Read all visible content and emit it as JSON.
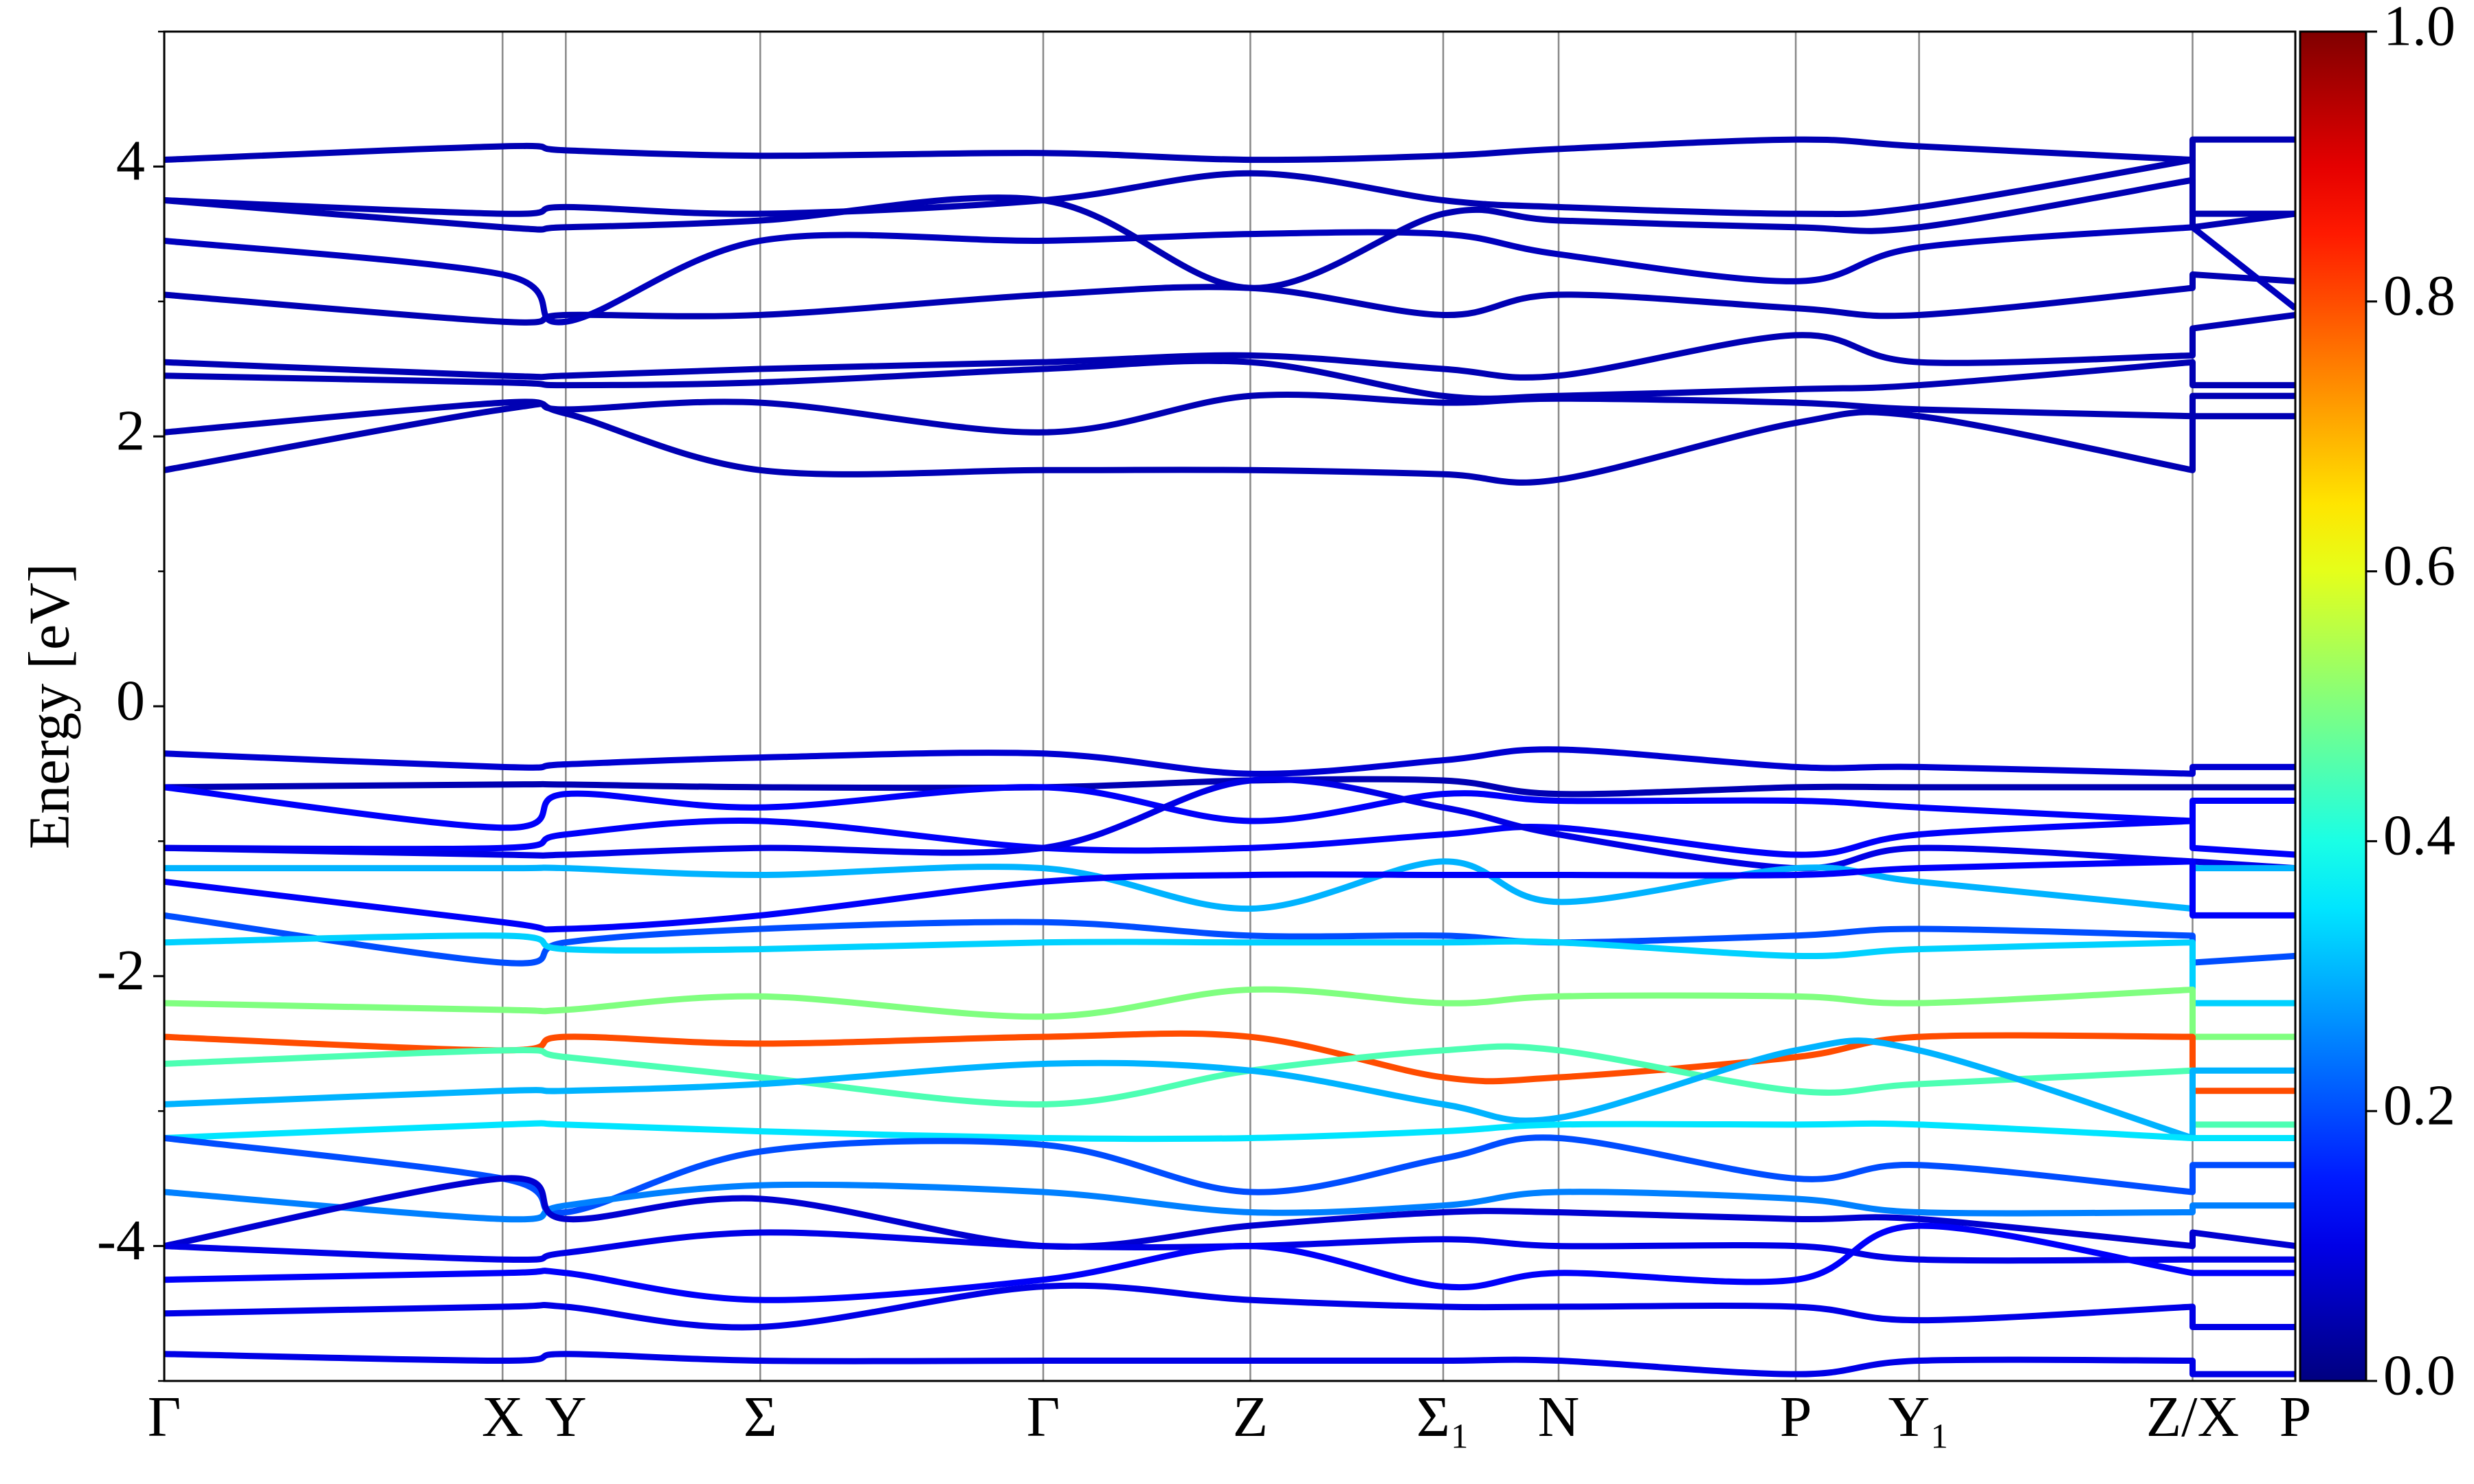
{
  "chart_data": {
    "type": "line",
    "ylabel": "Energy [eV]",
    "x": [
      0,
      0.214,
      0.254,
      0.377,
      0.556,
      0.687,
      0.809,
      0.882,
      1.032,
      1.11,
      1.283,
      1.283,
      1.348
    ],
    "xlim": [
      0,
      1.348
    ],
    "xticks": [
      {
        "value": 0,
        "label": "Γ"
      },
      {
        "value": 0.214,
        "label": "X"
      },
      {
        "value": 0.254,
        "label": "Y"
      },
      {
        "value": 0.377,
        "label": "Σ"
      },
      {
        "value": 0.556,
        "label": "Γ"
      },
      {
        "value": 0.687,
        "label": "Z"
      },
      {
        "value": 0.809,
        "label": "Σ₁"
      },
      {
        "value": 0.882,
        "label": "N"
      },
      {
        "value": 1.032,
        "label": "P"
      },
      {
        "value": 1.11,
        "label": "Y₁"
      },
      {
        "value": 1.283,
        "label": "Z/X"
      },
      {
        "value": 1.348,
        "label": "P"
      }
    ],
    "ylim": [
      -5,
      5
    ],
    "yticks": [
      -4,
      -2,
      0,
      2,
      4
    ],
    "yminorticks": [
      -5,
      -3,
      -1,
      1,
      3,
      5
    ],
    "colormap": "jet",
    "clim": [
      0,
      1
    ],
    "cticks": [
      {
        "value": 0,
        "label": "0.0"
      },
      0.2,
      0.4,
      0.6,
      0.8,
      {
        "value": 1,
        "label": "1.0"
      }
    ],
    "series": [
      {
        "weight": 0.05,
        "values": [
          1.75,
          2.2,
          2.17,
          1.75,
          1.75,
          1.75,
          1.72,
          1.68,
          2.1,
          2.15,
          1.75,
          2.15,
          2.15
        ]
      },
      {
        "weight": 0.05,
        "values": [
          2.03,
          2.25,
          2.2,
          2.25,
          2.03,
          2.3,
          2.25,
          2.28,
          2.25,
          2.2,
          2.15,
          2.3,
          2.3
        ]
      },
      {
        "weight": 0.05,
        "values": [
          2.45,
          2.4,
          2.38,
          2.4,
          2.5,
          2.55,
          2.3,
          2.3,
          2.35,
          2.38,
          2.55,
          2.38,
          2.38
        ]
      },
      {
        "weight": 0.05,
        "values": [
          2.55,
          2.45,
          2.45,
          2.5,
          2.55,
          2.6,
          2.5,
          2.45,
          2.75,
          2.55,
          2.6,
          2.8,
          2.9
        ]
      },
      {
        "weight": 0.05,
        "values": [
          3.05,
          2.85,
          2.9,
          2.9,
          3.05,
          3.1,
          2.9,
          3.05,
          2.95,
          2.9,
          3.1,
          3.2,
          3.15
        ]
      },
      {
        "weight": 0.06,
        "values": [
          3.45,
          3.2,
          2.85,
          3.45,
          3.45,
          3.5,
          3.5,
          3.35,
          3.15,
          3.4,
          3.55,
          3.55,
          2.95
        ]
      },
      {
        "weight": 0.05,
        "values": [
          3.75,
          3.55,
          3.55,
          3.6,
          3.75,
          3.1,
          3.65,
          3.6,
          3.55,
          3.55,
          3.9,
          3.55,
          3.65
        ]
      },
      {
        "weight": 0.05,
        "values": [
          3.75,
          3.65,
          3.7,
          3.65,
          3.75,
          3.95,
          3.75,
          3.7,
          3.65,
          3.7,
          4.05,
          3.65,
          3.65
        ]
      },
      {
        "weight": 0.05,
        "values": [
          4.05,
          4.15,
          4.12,
          4.08,
          4.1,
          4.05,
          4.08,
          4.13,
          4.2,
          4.15,
          4.05,
          4.2,
          4.2
        ]
      },
      {
        "weight": 0.08,
        "values": [
          -0.35,
          -0.45,
          -0.43,
          -0.38,
          -0.35,
          -0.5,
          -0.4,
          -0.32,
          -0.45,
          -0.45,
          -0.5,
          -0.45,
          -0.45
        ]
      },
      {
        "weight": 0.05,
        "values": [
          -0.6,
          -0.58,
          -0.58,
          -0.6,
          -0.6,
          -0.55,
          -0.55,
          -0.65,
          -0.6,
          -0.6,
          -0.6,
          -0.6,
          -0.6
        ]
      },
      {
        "weight": 0.12,
        "values": [
          -0.6,
          -0.9,
          -0.65,
          -0.75,
          -0.6,
          -0.85,
          -0.65,
          -0.7,
          -0.7,
          -0.75,
          -0.85,
          -0.7,
          -0.7
        ]
      },
      {
        "weight": 0.12,
        "values": [
          -1.05,
          -1.05,
          -0.95,
          -0.85,
          -1.05,
          -1.05,
          -0.95,
          -0.9,
          -1.1,
          -0.95,
          -0.85,
          -1.05,
          -1.1
        ]
      },
      {
        "weight": 0.1,
        "values": [
          -1.05,
          -1.1,
          -1.1,
          -1.05,
          -1.05,
          -0.55,
          -0.75,
          -0.95,
          -1.2,
          -1.05,
          -1.15,
          -1.15,
          -1.2
        ]
      },
      {
        "weight": 0.3,
        "values": [
          -1.2,
          -1.2,
          -1.2,
          -1.25,
          -1.2,
          -1.5,
          -1.15,
          -1.45,
          -1.2,
          -1.3,
          -1.5,
          -1.2,
          -1.2
        ]
      },
      {
        "weight": 0.12,
        "values": [
          -1.3,
          -1.6,
          -1.65,
          -1.55,
          -1.3,
          -1.25,
          -1.25,
          -1.25,
          -1.25,
          -1.2,
          -1.15,
          -1.55,
          -1.55
        ]
      },
      {
        "weight": 0.2,
        "values": [
          -1.55,
          -1.9,
          -1.75,
          -1.65,
          -1.6,
          -1.7,
          -1.7,
          -1.75,
          -1.7,
          -1.65,
          -1.7,
          -1.9,
          -1.85
        ]
      },
      {
        "weight": 0.33,
        "values": [
          -1.75,
          -1.7,
          -1.8,
          -1.8,
          -1.75,
          -1.75,
          -1.75,
          -1.75,
          -1.85,
          -1.8,
          -1.75,
          -2.2,
          -2.2
        ]
      },
      {
        "weight": 0.5,
        "values": [
          -2.2,
          -2.25,
          -2.25,
          -2.15,
          -2.3,
          -2.1,
          -2.2,
          -2.15,
          -2.15,
          -2.2,
          -2.1,
          -2.45,
          -2.45
        ]
      },
      {
        "weight": 0.8,
        "values": [
          -2.45,
          -2.55,
          -2.45,
          -2.5,
          -2.45,
          -2.45,
          -2.75,
          -2.75,
          -2.6,
          -2.45,
          -2.45,
          -2.85,
          -2.85
        ]
      },
      {
        "weight": 0.45,
        "values": [
          -2.65,
          -2.55,
          -2.6,
          -2.75,
          -2.95,
          -2.7,
          -2.55,
          -2.55,
          -2.85,
          -2.8,
          -2.7,
          -3.1,
          -3.1
        ]
      },
      {
        "weight": 0.3,
        "values": [
          -2.95,
          -2.85,
          -2.85,
          -2.8,
          -2.65,
          -2.7,
          -2.95,
          -3.05,
          -2.55,
          -2.55,
          -3.2,
          -2.7,
          -2.7
        ]
      },
      {
        "weight": 0.35,
        "values": [
          -3.2,
          -3.1,
          -3.1,
          -3.15,
          -3.2,
          -3.2,
          -3.15,
          -3.1,
          -3.1,
          -3.1,
          -3.2,
          -3.2,
          -3.2
        ]
      },
      {
        "weight": 0.2,
        "values": [
          -3.2,
          -3.5,
          -3.75,
          -3.3,
          -3.25,
          -3.6,
          -3.35,
          -3.2,
          -3.5,
          -3.4,
          -3.6,
          -3.4,
          -3.4
        ]
      },
      {
        "weight": 0.25,
        "values": [
          -3.6,
          -3.8,
          -3.7,
          -3.55,
          -3.6,
          -3.75,
          -3.7,
          -3.6,
          -3.65,
          -3.75,
          -3.75,
          -3.7,
          -3.7
        ]
      },
      {
        "weight": 0.08,
        "values": [
          -4.0,
          -3.5,
          -3.8,
          -3.65,
          -4.0,
          -3.85,
          -3.75,
          -3.75,
          -3.8,
          -3.8,
          -4.0,
          -3.9,
          -4.0
        ]
      },
      {
        "weight": 0.1,
        "values": [
          -4.0,
          -4.1,
          -4.05,
          -3.9,
          -4.0,
          -4.0,
          -3.95,
          -4.0,
          -4.0,
          -4.1,
          -4.1,
          -4.1,
          -4.1
        ]
      },
      {
        "weight": 0.12,
        "values": [
          -4.25,
          -4.2,
          -4.2,
          -4.4,
          -4.25,
          -4.0,
          -4.3,
          -4.2,
          -4.25,
          -3.85,
          -4.2,
          -4.2,
          -4.2
        ]
      },
      {
        "weight": 0.1,
        "values": [
          -4.5,
          -4.45,
          -4.45,
          -4.6,
          -4.3,
          -4.4,
          -4.45,
          -4.45,
          -4.45,
          -4.55,
          -4.45,
          -4.6,
          -4.6
        ]
      },
      {
        "weight": 0.1,
        "values": [
          -4.8,
          -4.85,
          -4.8,
          -4.85,
          -4.85,
          -4.85,
          -4.85,
          -4.85,
          -4.95,
          -4.85,
          -4.85,
          -4.95,
          -4.95
        ]
      }
    ]
  }
}
